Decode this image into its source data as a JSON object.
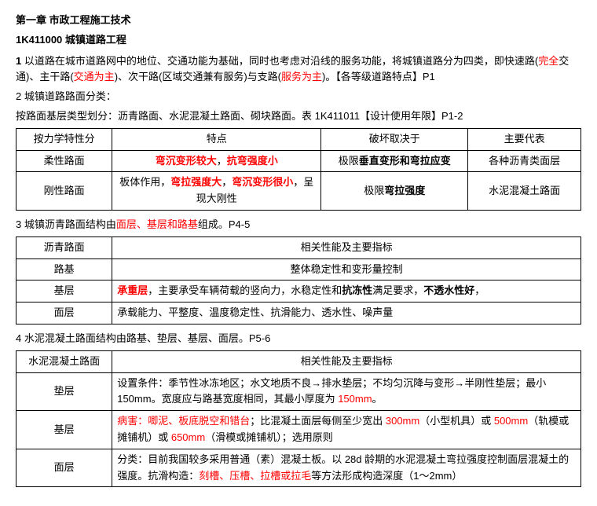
{
  "title": "第一章 市政工程施工技术",
  "subTitle": "1K411000 城镇道路工程",
  "p1_prefix": "1",
  "p1_a": " 以道路在城市道路网中的地位、交通功能为基础，同时也考虑对沿线的服务功能，将城镇道路分为四类，即快速路(",
  "p1_r1": "完全",
  "p1_b": "交通)、主干路(",
  "p1_r2": "交通为主",
  "p1_c": ")、次干路(区域交通兼有服务)与支路(",
  "p1_r3": "服务为主",
  "p1_d": ")。【各等级道路特点】P1",
  "p2": "2 城镇道路路面分类：",
  "p2b": "按路面基层类型划分：沥青路面、水泥混凝土路面、砌块路面。表 1K411011【设计使用年限】P1-2",
  "t1": {
    "h1": "按力学特性分",
    "h2": "特点",
    "h3": "破坏取决于",
    "h4": "主要代表",
    "r1c1": "柔性路面",
    "r1c2a": "弯沉变形较大",
    "r1c2sep": "，",
    "r1c2b": "抗弯强度小",
    "r1c3a": "极限",
    "r1c3b": "垂直变形和弯拉应变",
    "r1c4": "各种沥青类面层",
    "r2c1": "刚性路面",
    "r2c2a": "板体作用，",
    "r2c2b": "弯拉强度大",
    "r2c2c": "，",
    "r2c2d": "弯沉变形很小",
    "r2c2e": "，呈现大刚性",
    "r2c3a": "极限",
    "r2c3b": "弯拉强度",
    "r2c4": "水泥混凝土路面"
  },
  "p3a": "3 城镇沥青路面结构由",
  "p3r": "面层、基层和路基",
  "p3b": "组成。P4-5",
  "t2": {
    "h1": "沥青路面",
    "h2": "相关性能及主要指标",
    "r1c1": "路基",
    "r1c2": "整体稳定性和变形量控制",
    "r2c1": "基层",
    "r2c2a": "承重层",
    "r2c2b": "，主要承受车辆荷载的竖向力，水稳定性和",
    "r2c2c": "抗冻性",
    "r2c2d": "满足要求，",
    "r2c2e": "不透水性好",
    "r2c2f": "，",
    "r3c1": "面层",
    "r3c2": "承载能力、平整度、温度稳定性、抗滑能力、透水性、噪声量"
  },
  "p4": "4 水泥混凝土路面结构由路基、垫层、基层、面层。P5-6",
  "t3": {
    "h1": "水泥混凝土路面",
    "h2": "相关性能及主要指标",
    "r1c1": "垫层",
    "r1c2a": "设置条件：季节性冰冻地区；水文地质不良→排水垫层；不均匀沉降与变形→半刚性垫层；最小 150mm。宽度应与路基宽度相同，其最小厚度为 ",
    "r1c2b": "150mm",
    "r1c2c": "。",
    "r2c1": "基层",
    "r2c2a": "病害：唧泥、板底脱空和错台",
    "r2c2b": "；比混凝土面层每侧至少宽出 ",
    "r2c2c": "300mm",
    "r2c2d": "（小型机具）或 ",
    "r2c2e": "500mm",
    "r2c2f": "（轨模或摊铺机）或 ",
    "r2c2g": "650mm",
    "r2c2h": "（滑模或摊铺机）；选用原则",
    "r3c1": "面层",
    "r3c2a": "分类：目前我国较多采用普通（素）混凝土板。以 28d 龄期的水泥混凝土弯拉强度控制面层混凝土的强度。抗滑构造：",
    "r3c2b": "刻槽、压槽、拉槽或拉毛",
    "r3c2c": "等方法形成构造深度（1～2mm）"
  }
}
